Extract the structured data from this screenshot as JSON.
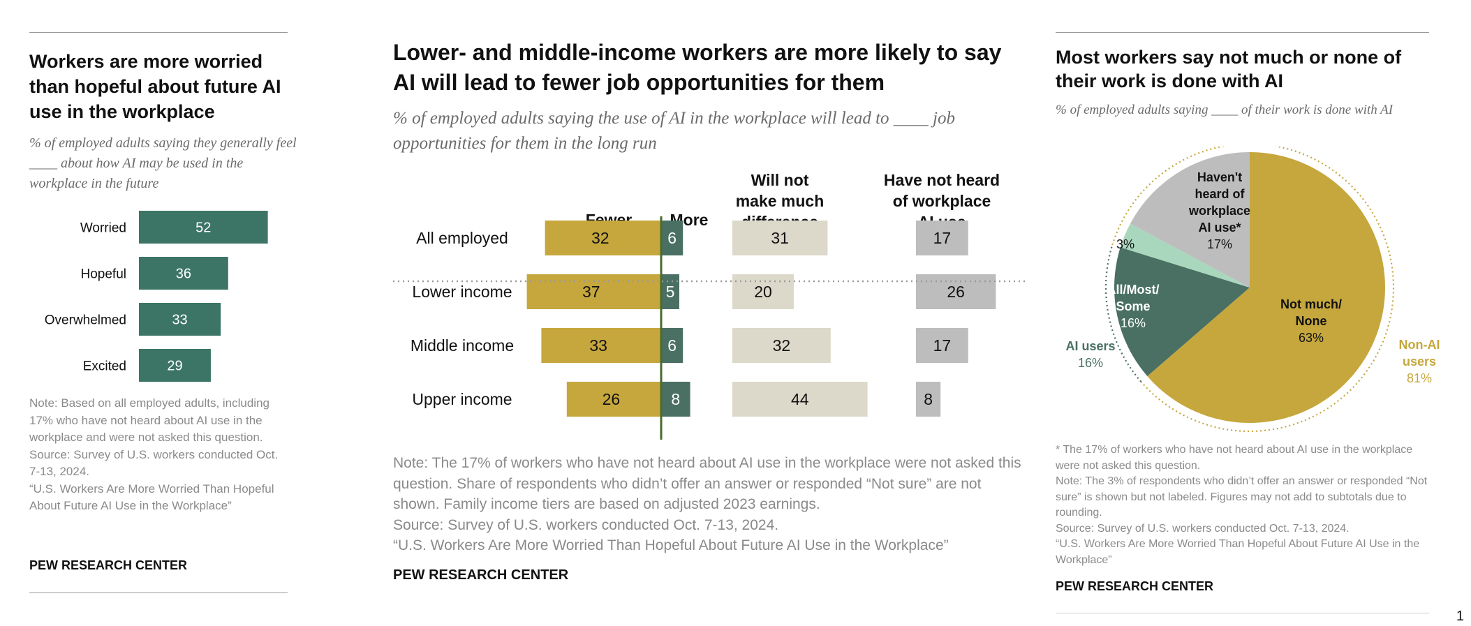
{
  "colors": {
    "teal": "#3c7566",
    "dark_green": "#4a7063",
    "gold": "#c6a73d",
    "beige": "#dcd9ca",
    "gray": "#bdbdbd",
    "light_green": "#a9d7bd",
    "note_gray": "#8a8a8a"
  },
  "panel_left": {
    "title": "Workers are more worried than hopeful about future AI use in the workplace",
    "subtitle": "% of employed adults saying they generally feel ____ about how AI may be used in the workplace in the future",
    "note": "Note: Based on all employed adults, including 17% who have not heard about AI use in the workplace and were not asked this question.\nSource: Survey of U.S. workers conducted Oct. 7-13, 2024.\n“U.S. Workers Are More Worried Than Hopeful About Future AI Use in the Workplace”",
    "brand": "PEW RESEARCH CENTER"
  },
  "panel_middle": {
    "title": "Lower- and middle-income workers are more likely to say AI will lead to fewer job opportunities for them",
    "subtitle": "% of employed adults saying the use of AI in the workplace will lead to ____ job opportunities for them in the long run",
    "note": "Note: The 17% of workers who have not heard about AI use in the workplace were not asked this question. Share of respondents who didn’t offer an answer or responded “Not sure” are not shown. Family income tiers are based on adjusted 2023 earnings.\nSource: Survey of U.S. workers conducted Oct. 7-13, 2024.\n“U.S. Workers Are More Worried Than Hopeful About Future AI Use in the Workplace”",
    "brand": "PEW RESEARCH CENTER"
  },
  "panel_right": {
    "title": "Most workers say not much or none of their work is done with AI",
    "subtitle": "% of employed adults saying ____ of their work is done with AI",
    "note": "* The 17% of workers who have not heard about AI use in the workplace were not asked this question.\nNote: The 3% of respondents who didn’t offer an answer or responded “Not sure” is shown but not labeled. Figures may not add to subtotals due to rounding.\nSource: Survey of U.S. workers conducted Oct. 7-13, 2024.\n“U.S. Workers Are More Worried Than Hopeful About Future AI Use in the Workplace”",
    "brand": "PEW RESEARCH CENTER"
  },
  "page_number": "1",
  "chart_data": [
    {
      "type": "bar",
      "orientation": "horizontal",
      "categories": [
        "Worried",
        "Hopeful",
        "Overwhelmed",
        "Excited"
      ],
      "values": [
        52,
        36,
        33,
        29
      ],
      "title": "Workers are more worried than hopeful about future AI use in the workplace"
    },
    {
      "type": "bar",
      "orientation": "horizontal",
      "stacked": "diverging",
      "categories": [
        "All employed",
        "Lower income",
        "Middle income",
        "Upper income"
      ],
      "series": [
        {
          "name": "Fewer",
          "values": [
            32,
            37,
            33,
            26
          ]
        },
        {
          "name": "More",
          "values": [
            6,
            5,
            6,
            8
          ]
        },
        {
          "name": "Will not make much difference",
          "values": [
            31,
            20,
            32,
            44
          ]
        },
        {
          "name": "Have not heard of workplace AI use",
          "values": [
            17,
            26,
            17,
            8
          ]
        }
      ],
      "title": "Lower- and middle-income workers are more likely to say AI will lead to fewer job opportunities for them"
    },
    {
      "type": "pie",
      "title": "Most workers say not much or none of their work is done with AI",
      "slices": [
        {
          "label": "Not much/ None",
          "value": 63
        },
        {
          "label": "All/Most/ Some",
          "value": 16
        },
        {
          "label": "",
          "value": 3,
          "display": "3%"
        },
        {
          "label": "Haven't heard of workplace AI use*",
          "value": 17
        }
      ],
      "groups": [
        {
          "label": "Non-AI users",
          "value": 81
        },
        {
          "label": "AI users",
          "value": 16
        }
      ]
    }
  ]
}
